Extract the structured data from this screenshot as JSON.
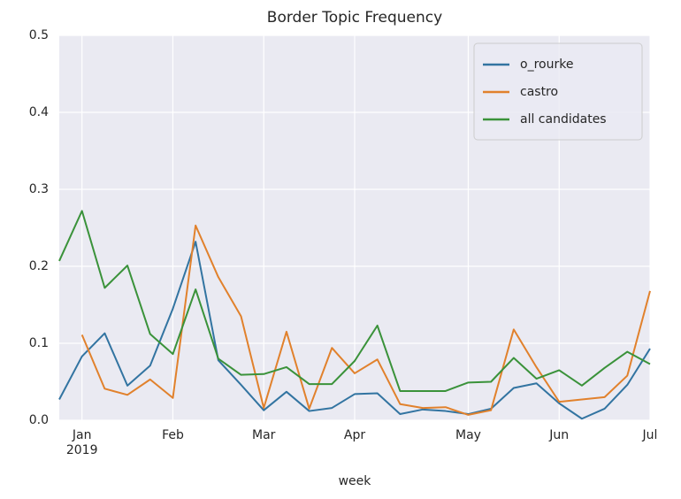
{
  "chart_data": {
    "type": "line",
    "title": "Border Topic Frequency",
    "x_label": "week",
    "categories": [
      null,
      null,
      null,
      null,
      null,
      null,
      null,
      null,
      null,
      null,
      null,
      null,
      null,
      null,
      null,
      null,
      null,
      null,
      null,
      null,
      null,
      null,
      null,
      null,
      null,
      null,
      null
    ],
    "xticks": [
      {
        "value": 1,
        "label": "Jan\n2019"
      },
      {
        "value": 5,
        "label": "Feb"
      },
      {
        "value": 9,
        "label": "Mar"
      },
      {
        "value": 13,
        "label": "Apr"
      },
      {
        "value": 18,
        "label": "May"
      },
      {
        "value": 22,
        "label": "Jun"
      },
      {
        "value": 26,
        "label": "Jul"
      }
    ],
    "ylim": [
      0,
      0.5
    ],
    "yticks": [
      {
        "value": 0,
        "label": "0.0"
      },
      0.1,
      0.2,
      0.3,
      0.4,
      0.5
    ],
    "grid": true,
    "legend": "upper right",
    "series": [
      {
        "name": "o_rourke",
        "color": "#3274a1",
        "values": [
          0.027,
          0.083,
          0.113,
          0.045,
          0.071,
          0.145,
          0.232,
          0.078,
          0.046,
          0.013,
          0.037,
          0.012,
          0.016,
          0.034,
          0.035,
          0.008,
          0.014,
          0.012,
          0.008,
          0.015,
          0.042,
          0.048,
          0.022,
          0.002,
          0.015,
          0.046,
          0.093
        ]
      },
      {
        "name": "castro",
        "color": "#e1812c",
        "values": [
          null,
          0.111,
          0.041,
          0.033,
          0.053,
          0.029,
          0.253,
          0.186,
          0.135,
          0.016,
          0.115,
          0.015,
          0.094,
          0.061,
          0.079,
          0.021,
          0.016,
          0.017,
          0.007,
          0.013,
          0.118,
          0.069,
          0.024,
          0.027,
          0.03,
          0.058,
          0.168
        ]
      },
      {
        "name": "all candidates",
        "color": "#3a923a",
        "values": [
          0.207,
          0.272,
          0.172,
          0.201,
          0.112,
          0.086,
          0.17,
          0.08,
          0.059,
          0.06,
          0.069,
          0.047,
          0.047,
          0.077,
          0.123,
          0.038,
          0.038,
          0.038,
          0.049,
          0.05,
          0.081,
          0.054,
          0.065,
          0.045,
          0.068,
          0.089,
          0.073
        ]
      }
    ]
  }
}
